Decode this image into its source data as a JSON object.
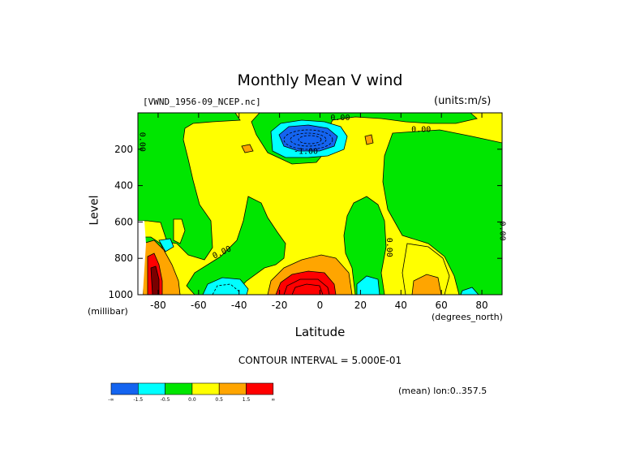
{
  "chart_data": {
    "type": "heatmap",
    "title": "Monthly Mean V wind",
    "subtitle": "[VWND_1956-09_NCEP.nc]",
    "units": "(units:m/s)",
    "xlabel": "Latitude",
    "xunit": "(degrees_north)",
    "ylabel": "Level",
    "yunit": "(millibar)",
    "xlim": [
      -90,
      90
    ],
    "ylim": [
      1000,
      0
    ],
    "x_ticks": [
      -80,
      -60,
      -40,
      -20,
      0,
      20,
      40,
      60,
      80
    ],
    "y_ticks": [
      200,
      400,
      600,
      800,
      1000
    ],
    "contour_interval_text": "CONTOUR INTERVAL = 5.000E-01",
    "mean_text": "(mean) lon:0..357.5",
    "contour_labels": [
      {
        "text": "0.00",
        "x": 10,
        "y": 40
      },
      {
        "text": "0.00",
        "x": 50,
        "y": 105
      },
      {
        "text": "-1.00",
        "x": -7,
        "y": 225
      },
      {
        "text": "0.00",
        "x": -48,
        "y": 780
      },
      {
        "text": "0.00",
        "x": 33,
        "y": 740
      },
      {
        "text": "0.00",
        "x": -89,
        "y": 160
      },
      {
        "text": "0.00",
        "x": 89,
        "y": 650
      }
    ],
    "legend": {
      "colors": [
        "#1464f0",
        "#00ffff",
        "#00e600",
        "#ffff00",
        "#ffa500",
        "#ff0000"
      ],
      "labels": [
        "-∞",
        "-1.5",
        "-0.5",
        "0.0",
        "0.5",
        "1.5",
        "∞"
      ]
    }
  }
}
